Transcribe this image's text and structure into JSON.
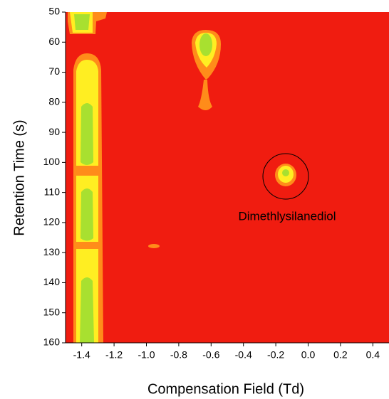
{
  "chart_data": {
    "type": "contour",
    "x_label": "Compensation Field (Td)",
    "y_label": "Retention Time (s)",
    "annotation": "Dimethlysilanediol",
    "background_color": "#f01c10",
    "xlim": [
      -1.5,
      0.5
    ],
    "ylim": [
      160,
      50
    ],
    "xticks": [
      -1.4,
      {
        "value": -1.2,
        "label": "-1.2"
      },
      {
        "value": -1.0,
        "label": "-1.0"
      },
      -0.8,
      -0.6,
      -0.4,
      -0.2,
      {
        "value": 0,
        "label": "0.0"
      },
      0.2,
      0.4
    ],
    "yticks": [
      50,
      60,
      70,
      80,
      90,
      100,
      110,
      120,
      130,
      140,
      150,
      160
    ]
  }
}
